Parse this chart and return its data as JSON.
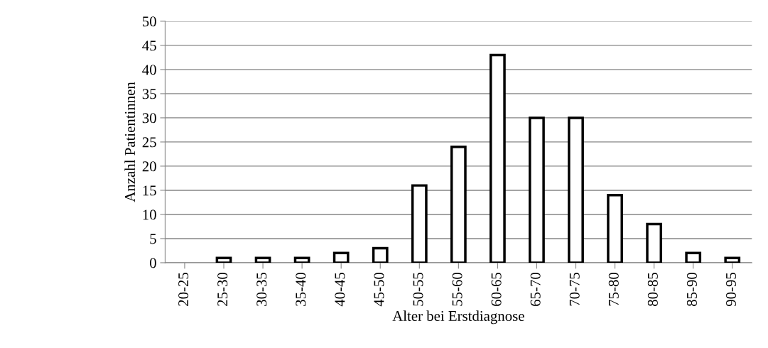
{
  "chart_data": {
    "type": "bar",
    "xlabel": "Alter bei Erstdiagnose",
    "ylabel": "Anzahl Patientinnen",
    "categories": [
      "20-25",
      "25-30",
      "30-35",
      "35-40",
      "40-45",
      "45-50",
      "50-55",
      "55-60",
      "60-65",
      "65-70",
      "70-75",
      "75-80",
      "80-85",
      "85-90",
      "90-95"
    ],
    "values": [
      0,
      1,
      1,
      1,
      2,
      3,
      16,
      24,
      43,
      30,
      30,
      14,
      8,
      2,
      1
    ],
    "color": "#ffffff",
    "ylim": [
      0,
      50
    ],
    "yticks": [
      0,
      5,
      10,
      15,
      20,
      25,
      30,
      35,
      40,
      45,
      50
    ],
    "grid": "y",
    "legend": false
  }
}
